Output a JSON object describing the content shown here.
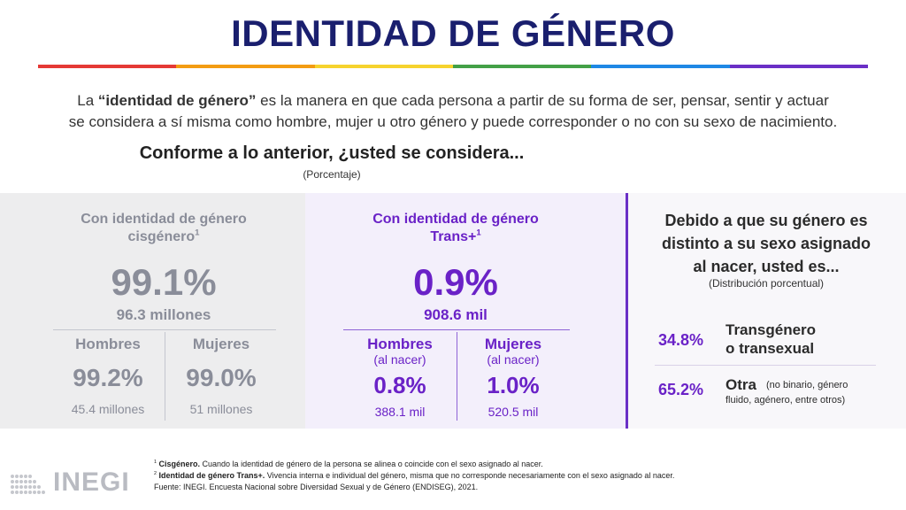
{
  "header": {
    "title": "IDENTIDAD DE GÉNERO",
    "rainbow_colors": [
      "#e53935",
      "#f39c12",
      "#f6d32d",
      "#43a047",
      "#1e88e5",
      "#6a2fc6"
    ]
  },
  "intro": {
    "lead": "La ",
    "term": "“identidad de género”",
    "line1_rest": " es la manera en que cada persona a partir de su forma de ser, pensar, sentir y actuar",
    "line2": "se considera a sí misma como hombre, mujer u otro género y puede corresponder o no con su sexo de nacimiento."
  },
  "question": {
    "text": "Conforme a lo anterior, ¿usted se considera...",
    "unit": "(Porcentaje)"
  },
  "cis": {
    "heading_line1": "Con identidad de género",
    "heading_line2": "cisgénero",
    "heading_sup": "1",
    "percent": "99.1%",
    "people": "96.3 millones",
    "men_label": "Hombres",
    "men_pct": "99.2%",
    "men_people": "45.4 millones",
    "women_label": "Mujeres",
    "women_pct": "99.0%",
    "women_people": "51 millones"
  },
  "trans": {
    "heading_line1": "Con identidad de género",
    "heading_line2": "Trans+",
    "heading_sup": "1",
    "percent": "0.9%",
    "people": "908.6 mil",
    "men_label": "Hombres",
    "men_note": "(al nacer)",
    "men_pct": "0.8%",
    "men_people": "388.1 mil",
    "women_label": "Mujeres",
    "women_note": "(al nacer)",
    "women_pct": "1.0%",
    "women_people": "520.5 mil"
  },
  "distribution": {
    "heading_line1": "Debido a que su género es",
    "heading_line2": "distinto a su sexo asignado",
    "heading_line3": "al nacer, usted es...",
    "unit": "(Distribución porcentual)",
    "items": [
      {
        "pct": "34.8%",
        "label_line1": "Transgénero",
        "label_line2": "o transexual"
      },
      {
        "pct": "65.2%",
        "label": "Otra",
        "note_line1": "(no binario, género",
        "note_line2": "fluido, agénero, entre otros)"
      }
    ]
  },
  "footer": {
    "logo_text": "INEGI",
    "note1_sup": "1",
    "note1_term": "Cisgénero.",
    "note1_text": " Cuando la identidad de género de la persona se alinea o coincide con el sexo asignado al nacer.",
    "note2_sup": "2",
    "note2_term": "Identidad de género Trans+.",
    "note2_text": " Vivencia interna e individual del género, misma que no corresponde necesariamente con el sexo asignado al nacer.",
    "source": "Fuente:  INEGI. Encuesta Nacional sobre Diversidad Sexual y de Género (ENDISEG), 2021."
  }
}
